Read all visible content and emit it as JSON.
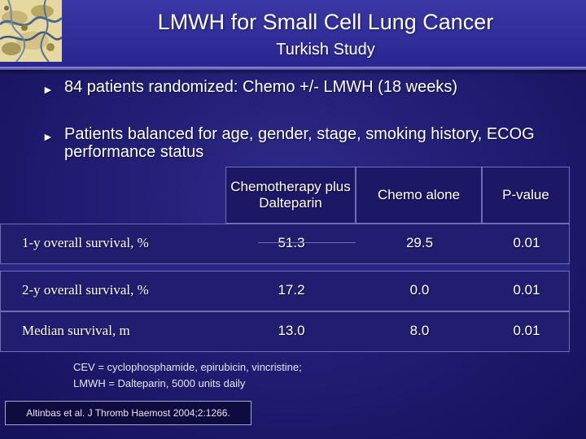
{
  "slide": {
    "title": "LMWH for Small Cell Lung Cancer",
    "subtitle": "Turkish Study"
  },
  "bullets": [
    "84 patients randomized: Chemo +/- LMWH (18 weeks)",
    "Patients balanced for age, gender, stage, smoking history, ECOG performance status"
  ],
  "table": {
    "headers": [
      "Chemotherapy plus Dalteparin",
      "Chemo alone",
      "P-value"
    ],
    "rows": [
      {
        "label": "1-y overall survival, %",
        "values": [
          "51.3",
          "29.5",
          "0.01"
        ]
      },
      {
        "label": "2-y overall survival, %",
        "values": [
          "17.2",
          "0.0",
          "0.01"
        ]
      },
      {
        "label": "Median survival, m",
        "values": [
          "13.0",
          "8.0",
          "0.01"
        ]
      }
    ]
  },
  "footnote": {
    "line1": "CEV = cyclophosphamide, epirubicin, vincristine;",
    "line2": "LMWH = Dalteparin, 5000 units daily"
  },
  "citation": "Altinbas et al. J Thromb Haemost 2004;2:1266.",
  "colors": {
    "background": "#221e74",
    "header_band": "#2a2690",
    "text": "#ffffff"
  }
}
